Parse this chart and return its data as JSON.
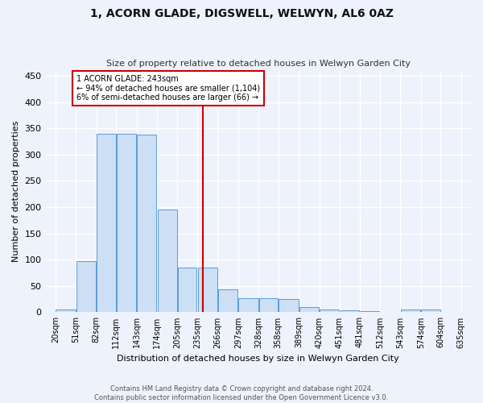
{
  "title": "1, ACORN GLADE, DIGSWELL, WELWYN, AL6 0AZ",
  "subtitle": "Size of property relative to detached houses in Welwyn Garden City",
  "xlabel": "Distribution of detached houses by size in Welwyn Garden City",
  "ylabel": "Number of detached properties",
  "bar_color": "#ccdff5",
  "bar_edge_color": "#5b9bd5",
  "background_color": "#eef2fc",
  "grid_color": "#ffffff",
  "bin_labels": [
    "20sqm",
    "51sqm",
    "82sqm",
    "112sqm",
    "143sqm",
    "174sqm",
    "205sqm",
    "235sqm",
    "266sqm",
    "297sqm",
    "328sqm",
    "358sqm",
    "389sqm",
    "420sqm",
    "451sqm",
    "481sqm",
    "512sqm",
    "543sqm",
    "574sqm",
    "604sqm",
    "635sqm"
  ],
  "bar_values": [
    5,
    98,
    340,
    340,
    338,
    196,
    85,
    85,
    43,
    27,
    26,
    25,
    10,
    5,
    4,
    2,
    0,
    5,
    5,
    1,
    3
  ],
  "bin_edges": [
    20,
    51,
    82,
    112,
    143,
    174,
    205,
    235,
    266,
    297,
    328,
    358,
    389,
    420,
    451,
    481,
    512,
    543,
    574,
    604,
    635
  ],
  "marker_value": 243,
  "marker_color": "#cc0000",
  "annotation_title": "1 ACORN GLADE: 243sqm",
  "annotation_line1": "← 94% of detached houses are smaller (1,104)",
  "annotation_line2": "6% of semi-detached houses are larger (66) →",
  "annotation_box_color": "#cc0000",
  "ylim": [
    0,
    460
  ],
  "yticks": [
    0,
    50,
    100,
    150,
    200,
    250,
    300,
    350,
    400,
    450
  ],
  "footnote1": "Contains HM Land Registry data © Crown copyright and database right 2024.",
  "footnote2": "Contains public sector information licensed under the Open Government Licence v3.0."
}
